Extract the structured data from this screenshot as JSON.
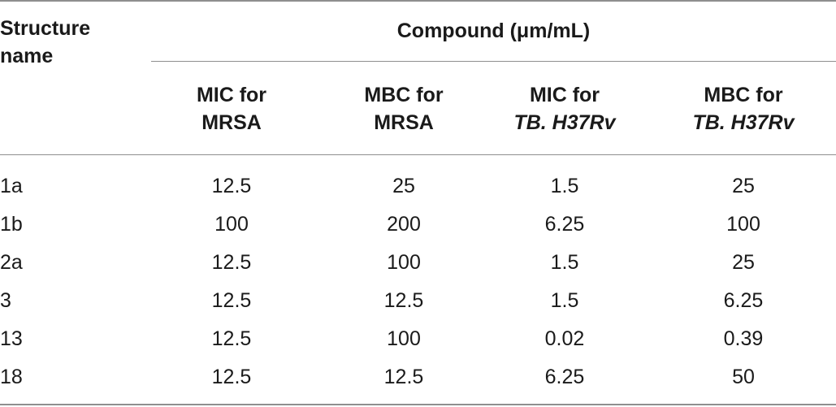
{
  "table": {
    "row_header": [
      "Structure",
      "name"
    ],
    "group_header": "Compound (μm/mL)",
    "columns": [
      {
        "line1": "MIC for",
        "line2": "MRSA",
        "italic2": false
      },
      {
        "line1": "MBC for",
        "line2": "MRSA",
        "italic2": false
      },
      {
        "line1": "MIC for",
        "line2": "TB. H37Rv",
        "italic2": true
      },
      {
        "line1": "MBC for",
        "line2": "TB. H37Rv",
        "italic2": true
      }
    ],
    "rows": [
      {
        "name": "1a",
        "values": [
          "12.5",
          "25",
          "1.5",
          "25"
        ]
      },
      {
        "name": "1b",
        "values": [
          "100",
          "200",
          "6.25",
          "100"
        ]
      },
      {
        "name": "2a",
        "values": [
          "12.5",
          "100",
          "1.5",
          "25"
        ]
      },
      {
        "name": "3",
        "values": [
          "12.5",
          "12.5",
          "1.5",
          "6.25"
        ]
      },
      {
        "name": "13",
        "values": [
          "12.5",
          "100",
          "0.02",
          "0.39"
        ]
      },
      {
        "name": "18",
        "values": [
          "12.5",
          "12.5",
          "6.25",
          "50"
        ]
      }
    ]
  }
}
